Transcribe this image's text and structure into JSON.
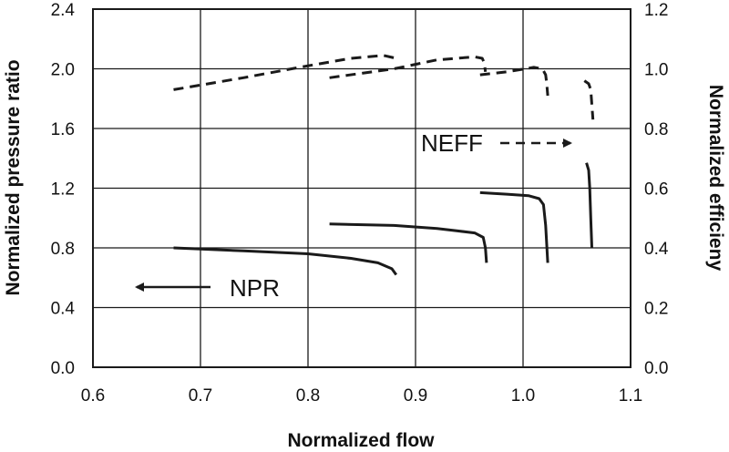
{
  "chart_data": {
    "type": "line",
    "xlabel": "Normalized flow",
    "ylabel_left": "Normalized pressure ratio",
    "ylabel_right": "Normalized efficieny",
    "xlim": [
      0.6,
      1.1
    ],
    "ylim_left": [
      0.0,
      2.4
    ],
    "ylim_right": [
      0.0,
      1.2
    ],
    "x_ticks": [
      "0.6",
      "0.7",
      "0.8",
      "0.9",
      "1.0",
      "1.1"
    ],
    "y_left_ticks": [
      "0.0",
      "0.4",
      "0.8",
      "1.2",
      "1.6",
      "2.0",
      "2.4"
    ],
    "y_right_ticks": [
      "0.0",
      "0.2",
      "0.4",
      "0.6",
      "0.8",
      "1.0",
      "1.2"
    ],
    "grid": true,
    "annotations": [
      {
        "text": "NEFF",
        "points_to": "right axis"
      },
      {
        "text": "NPR",
        "points_to": "left axis"
      }
    ],
    "series": [
      {
        "axis": "left",
        "style": "solid",
        "color": "#1a1a1a",
        "x": [
          0.675,
          0.74,
          0.8,
          0.84,
          0.865,
          0.878,
          0.882
        ],
        "y": [
          0.8,
          0.78,
          0.76,
          0.73,
          0.7,
          0.66,
          0.62
        ]
      },
      {
        "axis": "left",
        "style": "solid",
        "color": "#1a1a1a",
        "x": [
          0.82,
          0.88,
          0.92,
          0.955,
          0.963,
          0.965,
          0.966
        ],
        "y": [
          0.96,
          0.95,
          0.93,
          0.9,
          0.87,
          0.8,
          0.7
        ]
      },
      {
        "axis": "left",
        "style": "solid",
        "color": "#1a1a1a",
        "x": [
          0.96,
          0.985,
          1.005,
          1.015,
          1.019,
          1.021,
          1.023
        ],
        "y": [
          1.17,
          1.16,
          1.15,
          1.13,
          1.09,
          0.95,
          0.7
        ]
      },
      {
        "axis": "left",
        "style": "solid",
        "color": "#1a1a1a",
        "x": [
          1.059,
          1.061,
          1.062,
          1.063,
          1.064
        ],
        "y": [
          1.37,
          1.32,
          1.2,
          1.0,
          0.8
        ]
      },
      {
        "axis": "right",
        "style": "dashed",
        "color": "#1a1a1a",
        "x": [
          0.675,
          0.74,
          0.8,
          0.84,
          0.87,
          0.882
        ],
        "y": [
          0.93,
          0.97,
          1.01,
          1.035,
          1.045,
          1.035
        ]
      },
      {
        "axis": "right",
        "style": "dashed",
        "color": "#1a1a1a",
        "x": [
          0.82,
          0.88,
          0.92,
          0.955,
          0.962,
          0.964,
          0.965
        ],
        "y": [
          0.97,
          1.0,
          1.03,
          1.04,
          1.035,
          1.02,
          0.99
        ]
      },
      {
        "axis": "right",
        "style": "dashed",
        "color": "#1a1a1a",
        "x": [
          0.96,
          0.985,
          1.01,
          1.018,
          1.021,
          1.022,
          1.023
        ],
        "y": [
          0.98,
          0.99,
          1.005,
          1.0,
          0.98,
          0.95,
          0.91
        ]
      },
      {
        "axis": "right",
        "style": "dashed",
        "color": "#1a1a1a",
        "x": [
          1.057,
          1.061,
          1.063,
          1.064,
          1.065
        ],
        "y": [
          0.96,
          0.95,
          0.93,
          0.88,
          0.83
        ]
      }
    ]
  }
}
